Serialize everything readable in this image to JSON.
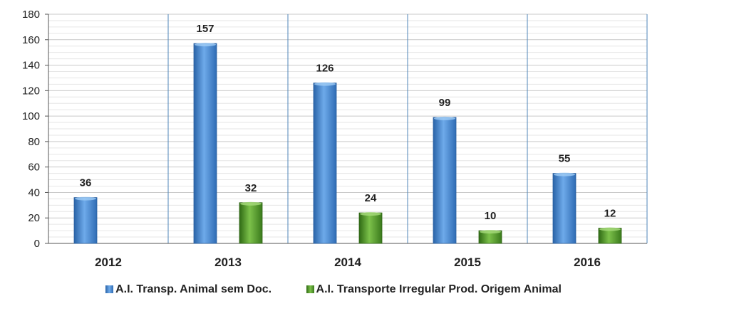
{
  "chart_data": {
    "type": "bar",
    "categories": [
      "2012",
      "2013",
      "2014",
      "2015",
      "2016"
    ],
    "series": [
      {
        "name": "A.I. Transp. Animal sem Doc.",
        "values": [
          36,
          157,
          126,
          99,
          55
        ],
        "color": "#4a8fd6"
      },
      {
        "name": "A.I. Transporte Irregular Prod. Origem Animal",
        "values": [
          null,
          32,
          24,
          10,
          12
        ],
        "color": "#5a9e2e"
      }
    ],
    "yticks": [
      "0",
      "20",
      "40",
      "60",
      "80",
      "100",
      "120",
      "140",
      "160",
      "180"
    ],
    "ylim": [
      0,
      180
    ],
    "grid": true,
    "legend_position": "bottom"
  }
}
